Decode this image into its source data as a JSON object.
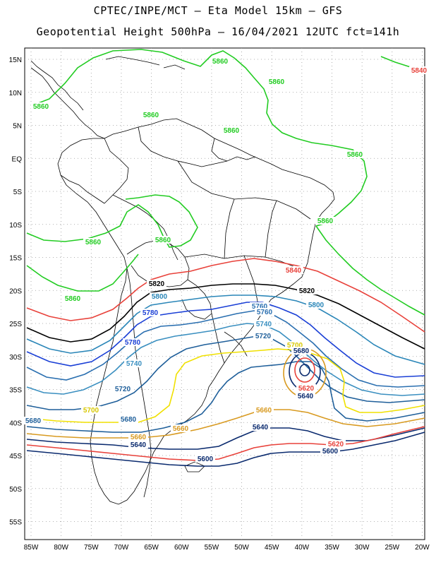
{
  "title_line1": "CPTEC/INPE/MCT –  Eta Model 15km – GFS",
  "title_line2": "Geopotential Height 500hPa – 16/04/2021 12UTC fct=141h",
  "lat_labels": [
    "15N",
    "10N",
    "5N",
    "EQ",
    "5S",
    "10S",
    "15S",
    "20S",
    "25S",
    "30S",
    "35S",
    "40S",
    "45S",
    "50S",
    "55S"
  ],
  "lon_labels": [
    "85W",
    "80W",
    "75W",
    "70W",
    "65W",
    "60W",
    "55W",
    "50W",
    "45W",
    "40W",
    "35W",
    "30W",
    "25W",
    "20W"
  ],
  "contour_colors": {
    "5860": "#22cc22",
    "5840": "#e8413a",
    "5820": "#000000",
    "5800": "#2a86b8",
    "5780": "#1a3fd6",
    "5760": "#2a6fb0",
    "5740": "#3a8fc0",
    "5720": "#1f5f9a",
    "5700": "#f0e000",
    "5680": "#d89a20",
    "5660": "#d89a20",
    "5640": "#0a2a6e",
    "5620": "#e8413a",
    "5600": "#0a2a6e"
  },
  "contour_labels": [
    {
      "text": "5860",
      "color": "#22cc22"
    },
    {
      "text": "5860",
      "color": "#22cc22"
    },
    {
      "text": "5860",
      "color": "#22cc22"
    },
    {
      "text": "5860",
      "color": "#22cc22"
    },
    {
      "text": "5860",
      "color": "#22cc22"
    },
    {
      "text": "5860",
      "color": "#22cc22"
    },
    {
      "text": "5860",
      "color": "#22cc22"
    },
    {
      "text": "5860",
      "color": "#22cc22"
    },
    {
      "text": "5860",
      "color": "#22cc22"
    },
    {
      "text": "5860",
      "color": "#22cc22"
    },
    {
      "text": "5840",
      "color": "#e8413a"
    },
    {
      "text": "5840",
      "color": "#e8413a"
    },
    {
      "text": "5820",
      "color": "#000000"
    },
    {
      "text": "5820",
      "color": "#000000"
    },
    {
      "text": "5800",
      "color": "#2a86b8"
    },
    {
      "text": "5800",
      "color": "#2a86b8"
    },
    {
      "text": "5780",
      "color": "#1a3fd6"
    },
    {
      "text": "5780",
      "color": "#1a3fd6"
    },
    {
      "text": "5760",
      "color": "#2a6fb0"
    },
    {
      "text": "5760",
      "color": "#2a6fb0"
    },
    {
      "text": "5740",
      "color": "#3a8fc0"
    },
    {
      "text": "5740",
      "color": "#3a8fc0"
    },
    {
      "text": "5720",
      "color": "#1f5f9a"
    },
    {
      "text": "5720",
      "color": "#1f5f9a"
    },
    {
      "text": "5700",
      "color": "#d8c800"
    },
    {
      "text": "5700",
      "color": "#d8c800"
    },
    {
      "text": "5680",
      "color": "#1f5f9a"
    },
    {
      "text": "5680",
      "color": "#0a2a6e"
    },
    {
      "text": "5680",
      "color": "#1f5f9a"
    },
    {
      "text": "5660",
      "color": "#d89a20"
    },
    {
      "text": "5660",
      "color": "#d89a20"
    },
    {
      "text": "5660",
      "color": "#d89a20"
    },
    {
      "text": "5640",
      "color": "#0a2a6e"
    },
    {
      "text": "5640",
      "color": "#0a2a6e"
    },
    {
      "text": "5640",
      "color": "#0a2a6e"
    },
    {
      "text": "5620",
      "color": "#e8413a"
    },
    {
      "text": "5620",
      "color": "#e8413a"
    },
    {
      "text": "5600",
      "color": "#0a2a6e"
    },
    {
      "text": "5600",
      "color": "#0a2a6e"
    }
  ]
}
